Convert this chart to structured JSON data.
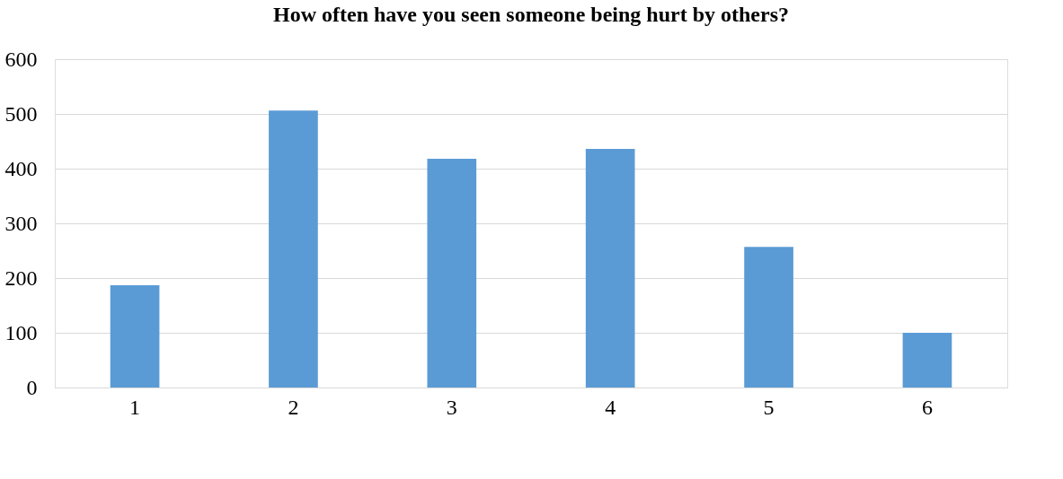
{
  "chart_data": {
    "type": "bar",
    "title": "How often have you seen someone being hurt by others?",
    "categories": [
      "1",
      "2",
      "3",
      "4",
      "5",
      "6"
    ],
    "values": [
      187,
      506,
      418,
      436,
      257,
      100
    ],
    "color": "#5b9bd5",
    "ylim": [
      0,
      600
    ],
    "yticks": [
      0,
      100,
      200,
      300,
      400,
      500,
      600
    ],
    "grid": "y"
  }
}
